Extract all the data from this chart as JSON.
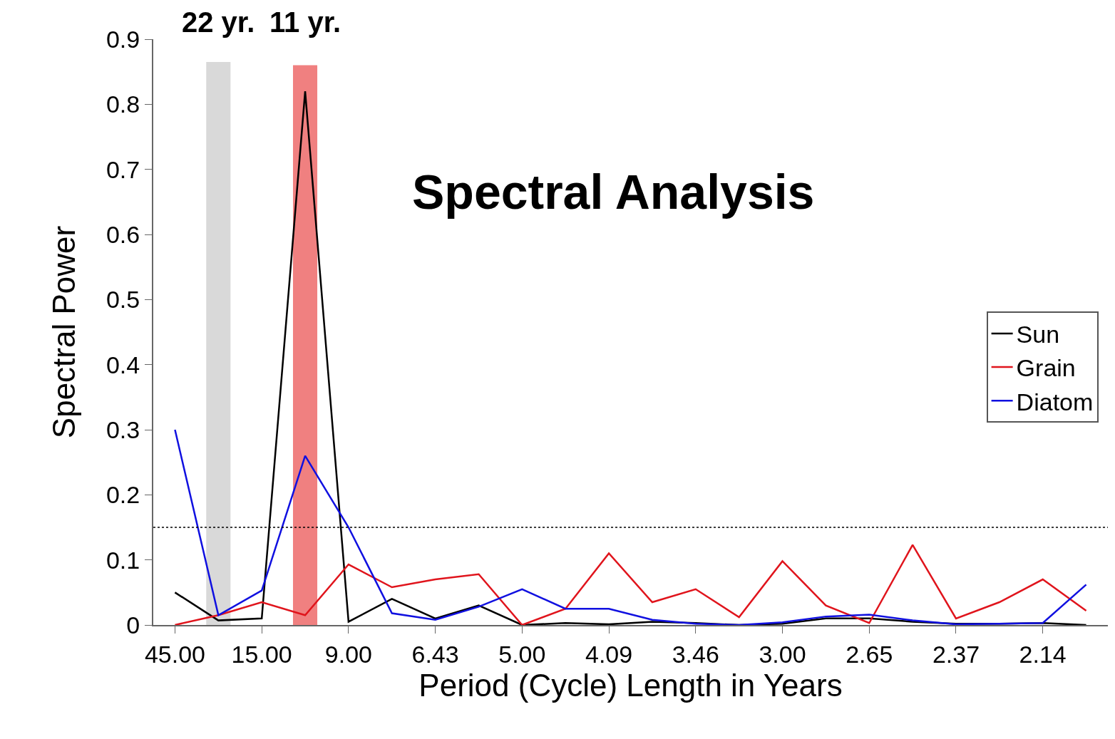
{
  "chart_data": {
    "type": "line",
    "title": "Spectral Analysis",
    "xlabel": "Period (Cycle) Length in Years",
    "ylabel": "Spectral Power",
    "categories": [
      "45.00",
      null,
      "15.00",
      null,
      "9.00",
      null,
      "6.43",
      null,
      "5.00",
      null,
      "4.09",
      null,
      "3.46",
      null,
      "3.00",
      null,
      "2.65",
      null,
      "2.37",
      null,
      "2.14",
      null
    ],
    "series": [
      {
        "type": "bar",
        "colors": [
          null,
          "#d9d9d9",
          null,
          "#f08080",
          null,
          null,
          null,
          null,
          null,
          null,
          null,
          null,
          null,
          null,
          null,
          null,
          null,
          null,
          null,
          null,
          null,
          null
        ],
        "values": [
          null,
          0.865,
          null,
          0.86,
          null,
          null,
          null,
          null,
          null,
          null,
          null,
          null,
          null,
          null,
          null,
          null,
          null,
          null,
          null,
          null,
          null,
          null
        ]
      },
      {
        "name": "Sun",
        "color": "#000000",
        "values": [
          0.05,
          0.007,
          0.01,
          0.82,
          0.005,
          0.04,
          0.01,
          0.03,
          0,
          0.003,
          0.001,
          0.005,
          0.003,
          0,
          0.002,
          0.01,
          0.01,
          0.005,
          0.002,
          0.002,
          0.003,
          0
        ]
      },
      {
        "name": "Grain",
        "color": "#e0141c",
        "values": [
          0,
          0.015,
          0.035,
          0.015,
          0.093,
          0.058,
          0.07,
          0.078,
          0,
          0.025,
          0.11,
          0.035,
          0.055,
          0.012,
          0.098,
          0.03,
          0.003,
          0.123,
          0.01,
          0.035,
          0.07,
          0.022
        ]
      },
      {
        "name": "Diatom",
        "color": "#1010e0",
        "values": [
          0.3,
          0.015,
          0.053,
          0.26,
          0.15,
          0.018,
          0.008,
          0.028,
          0.055,
          0.025,
          0.025,
          0.008,
          0.002,
          0,
          0.004,
          0.013,
          0.016,
          0.007,
          0.001,
          0.002,
          0.003,
          0.062
        ]
      }
    ],
    "ylim": [
      0,
      0.9
    ],
    "yticks": [
      0,
      0.1,
      0.2,
      0.3,
      0.4,
      0.5,
      0.6,
      0.7,
      0.8,
      0.9
    ],
    "annotations": [
      "22 yr.",
      "11 yr."
    ],
    "ref_lines": [
      {
        "axis": "y",
        "value": 0.15,
        "line_style": "dotted",
        "color": "#000000"
      }
    ],
    "grid": false,
    "legend": "right",
    "marker": "none",
    "line_style": "solid"
  }
}
